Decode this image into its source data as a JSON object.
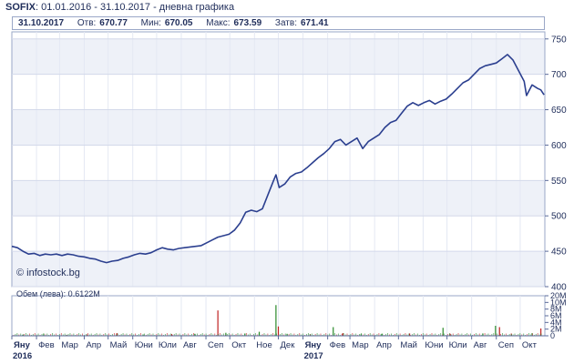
{
  "header": {
    "symbol": "SOFIX",
    "range": ": 01.01.2016 - 31.10.2017 - дневна графика"
  },
  "info": {
    "date": "31.10.2017",
    "open_label": "Отв:",
    "open": "670.77",
    "low_label": "Мин:",
    "low": "670.05",
    "high_label": "Макс:",
    "high": "673.59",
    "close_label": "Затв:",
    "close": "671.41"
  },
  "copyright": "© infostock.bg",
  "volume_label": "Обем (лева): 0.6122M",
  "colors": {
    "line": "#2b3f8f",
    "grid": "#e4e8f3",
    "band": "#eef1f8",
    "axis": "#5a6a99",
    "vol_up": "#2a8a2a",
    "vol_down": "#c02020"
  },
  "chart_data": [
    {
      "type": "line",
      "x_unit": "date",
      "yticks": [
        400,
        450,
        500,
        550,
        600,
        650,
        700,
        750
      ],
      "ylim": [
        400,
        760
      ],
      "x_months": [
        {
          "label": "Яну",
          "date": "2016-01-01",
          "year": "2016"
        },
        {
          "label": "Фев",
          "date": "2016-02-01"
        },
        {
          "label": "Мар",
          "date": "2016-03-01"
        },
        {
          "label": "Апр",
          "date": "2016-04-01"
        },
        {
          "label": "Май",
          "date": "2016-05-01"
        },
        {
          "label": "Юни",
          "date": "2016-06-01"
        },
        {
          "label": "Юли",
          "date": "2016-07-01"
        },
        {
          "label": "Авг",
          "date": "2016-08-01"
        },
        {
          "label": "Сеп",
          "date": "2016-09-01"
        },
        {
          "label": "Окт",
          "date": "2016-10-01"
        },
        {
          "label": "Ное",
          "date": "2016-11-01"
        },
        {
          "label": "Дек",
          "date": "2016-12-01"
        },
        {
          "label": "Яну",
          "date": "2017-01-01",
          "year": "2017"
        },
        {
          "label": "Фев",
          "date": "2017-02-01"
        },
        {
          "label": "Мар",
          "date": "2017-03-01"
        },
        {
          "label": "Апр",
          "date": "2017-04-01"
        },
        {
          "label": "Май",
          "date": "2017-05-01"
        },
        {
          "label": "Юни",
          "date": "2017-06-01"
        },
        {
          "label": "Юли",
          "date": "2017-07-01"
        },
        {
          "label": "Авг",
          "date": "2017-08-01"
        },
        {
          "label": "Сеп",
          "date": "2017-09-01"
        },
        {
          "label": "Окт",
          "date": "2017-10-01"
        }
      ],
      "points": [
        [
          "2016-01-01",
          457
        ],
        [
          "2016-01-08",
          455
        ],
        [
          "2016-01-15",
          450
        ],
        [
          "2016-01-22",
          446
        ],
        [
          "2016-01-29",
          447
        ],
        [
          "2016-02-05",
          444
        ],
        [
          "2016-02-12",
          446
        ],
        [
          "2016-02-19",
          445
        ],
        [
          "2016-02-26",
          446
        ],
        [
          "2016-03-04",
          444
        ],
        [
          "2016-03-11",
          446
        ],
        [
          "2016-03-18",
          445
        ],
        [
          "2016-03-25",
          443
        ],
        [
          "2016-04-01",
          442
        ],
        [
          "2016-04-08",
          440
        ],
        [
          "2016-04-15",
          439
        ],
        [
          "2016-04-22",
          436
        ],
        [
          "2016-04-29",
          434
        ],
        [
          "2016-05-06",
          436
        ],
        [
          "2016-05-13",
          437
        ],
        [
          "2016-05-20",
          440
        ],
        [
          "2016-05-27",
          442
        ],
        [
          "2016-06-03",
          445
        ],
        [
          "2016-06-10",
          447
        ],
        [
          "2016-06-17",
          446
        ],
        [
          "2016-06-24",
          448
        ],
        [
          "2016-07-01",
          452
        ],
        [
          "2016-07-08",
          455
        ],
        [
          "2016-07-15",
          453
        ],
        [
          "2016-07-22",
          452
        ],
        [
          "2016-07-29",
          454
        ],
        [
          "2016-08-05",
          455
        ],
        [
          "2016-08-12",
          456
        ],
        [
          "2016-08-19",
          457
        ],
        [
          "2016-08-26",
          458
        ],
        [
          "2016-09-02",
          462
        ],
        [
          "2016-09-09",
          466
        ],
        [
          "2016-09-16",
          470
        ],
        [
          "2016-09-23",
          472
        ],
        [
          "2016-09-30",
          474
        ],
        [
          "2016-10-07",
          480
        ],
        [
          "2016-10-14",
          490
        ],
        [
          "2016-10-21",
          505
        ],
        [
          "2016-10-28",
          508
        ],
        [
          "2016-11-04",
          506
        ],
        [
          "2016-11-11",
          510
        ],
        [
          "2016-11-18",
          530
        ],
        [
          "2016-11-25",
          550
        ],
        [
          "2016-11-28",
          558
        ],
        [
          "2016-12-02",
          540
        ],
        [
          "2016-12-09",
          545
        ],
        [
          "2016-12-16",
          555
        ],
        [
          "2016-12-23",
          560
        ],
        [
          "2016-12-30",
          562
        ],
        [
          "2017-01-06",
          568
        ],
        [
          "2017-01-13",
          575
        ],
        [
          "2017-01-20",
          582
        ],
        [
          "2017-01-27",
          588
        ],
        [
          "2017-02-03",
          595
        ],
        [
          "2017-02-10",
          605
        ],
        [
          "2017-02-17",
          608
        ],
        [
          "2017-02-24",
          600
        ],
        [
          "2017-03-03",
          605
        ],
        [
          "2017-03-10",
          610
        ],
        [
          "2017-03-17",
          595
        ],
        [
          "2017-03-24",
          605
        ],
        [
          "2017-03-31",
          610
        ],
        [
          "2017-04-07",
          615
        ],
        [
          "2017-04-14",
          625
        ],
        [
          "2017-04-21",
          632
        ],
        [
          "2017-04-28",
          635
        ],
        [
          "2017-05-05",
          645
        ],
        [
          "2017-05-12",
          655
        ],
        [
          "2017-05-19",
          660
        ],
        [
          "2017-05-26",
          656
        ],
        [
          "2017-06-02",
          660
        ],
        [
          "2017-06-09",
          663
        ],
        [
          "2017-06-16",
          658
        ],
        [
          "2017-06-23",
          662
        ],
        [
          "2017-06-30",
          665
        ],
        [
          "2017-07-07",
          672
        ],
        [
          "2017-07-14",
          680
        ],
        [
          "2017-07-21",
          688
        ],
        [
          "2017-07-28",
          692
        ],
        [
          "2017-08-04",
          700
        ],
        [
          "2017-08-11",
          708
        ],
        [
          "2017-08-18",
          712
        ],
        [
          "2017-08-25",
          714
        ],
        [
          "2017-09-01",
          716
        ],
        [
          "2017-09-08",
          722
        ],
        [
          "2017-09-15",
          728
        ],
        [
          "2017-09-22",
          720
        ],
        [
          "2017-09-29",
          705
        ],
        [
          "2017-10-06",
          690
        ],
        [
          "2017-10-09",
          670
        ],
        [
          "2017-10-16",
          685
        ],
        [
          "2017-10-23",
          680
        ],
        [
          "2017-10-27",
          678
        ],
        [
          "2017-10-31",
          671
        ]
      ]
    },
    {
      "type": "bar",
      "x_unit": "date",
      "yticks": [
        "0",
        "2M",
        "4M",
        "6M",
        "8M",
        "10M",
        "20M"
      ],
      "bars": [
        [
          "2016-01-15",
          0.4,
          "up"
        ],
        [
          "2016-02-10",
          0.5,
          "up"
        ],
        [
          "2016-03-10",
          0.3,
          "up"
        ],
        [
          "2016-04-05",
          0.4,
          "down"
        ],
        [
          "2016-05-12",
          0.8,
          "down"
        ],
        [
          "2016-06-15",
          0.4,
          "up"
        ],
        [
          "2016-07-20",
          0.5,
          "down"
        ],
        [
          "2016-08-18",
          0.6,
          "up"
        ],
        [
          "2016-09-16",
          7.6,
          "down"
        ],
        [
          "2016-09-26",
          0.9,
          "up"
        ],
        [
          "2016-10-20",
          0.7,
          "up"
        ],
        [
          "2016-11-07",
          1.2,
          "up"
        ],
        [
          "2016-11-28",
          9.2,
          "up"
        ],
        [
          "2016-12-01",
          2.8,
          "down"
        ],
        [
          "2016-12-12",
          0.6,
          "up"
        ],
        [
          "2017-01-10",
          0.5,
          "up"
        ],
        [
          "2017-02-08",
          2.6,
          "up"
        ],
        [
          "2017-02-20",
          0.8,
          "down"
        ],
        [
          "2017-03-15",
          0.5,
          "up"
        ],
        [
          "2017-04-10",
          0.6,
          "up"
        ],
        [
          "2017-05-15",
          0.7,
          "down"
        ],
        [
          "2017-06-26",
          2.4,
          "up"
        ],
        [
          "2017-07-05",
          0.6,
          "down"
        ],
        [
          "2017-08-15",
          0.7,
          "up"
        ],
        [
          "2017-08-31",
          3.0,
          "up"
        ],
        [
          "2017-09-05",
          2.6,
          "down"
        ],
        [
          "2017-09-20",
          0.5,
          "up"
        ],
        [
          "2017-10-16",
          0.8,
          "up"
        ],
        [
          "2017-10-27",
          2.2,
          "down"
        ]
      ]
    }
  ]
}
